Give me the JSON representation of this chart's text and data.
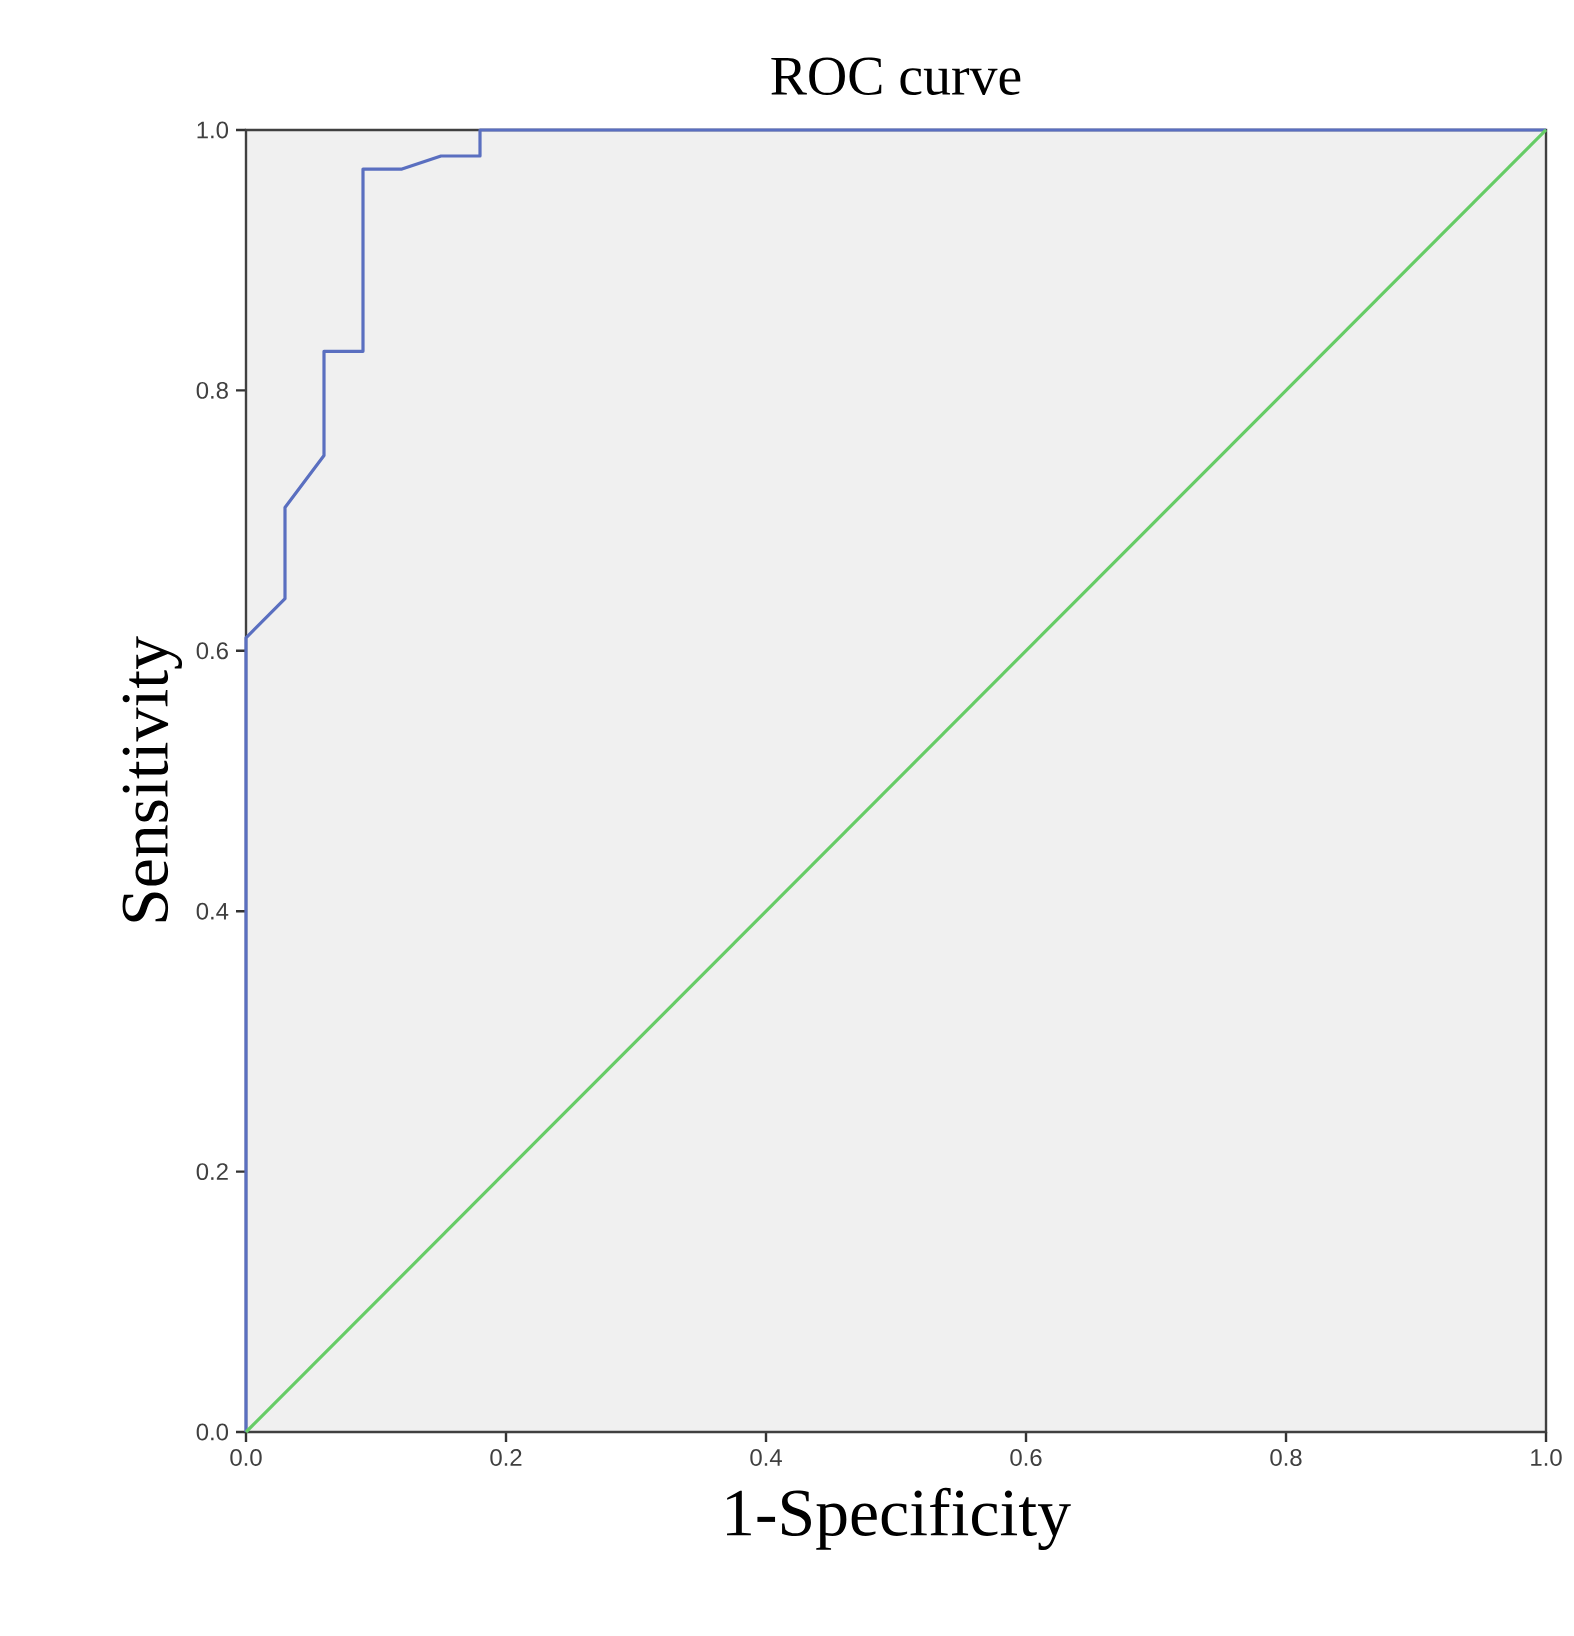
{
  "chart_data": {
    "type": "line",
    "title": "ROC curve",
    "xlabel": "1-Specificity",
    "ylabel": "Sensitivity",
    "series": [
      {
        "color": "#5a6fc0",
        "x": [
          0,
          0,
          0.03,
          0.03,
          0.06,
          0.06,
          0.09,
          0.09,
          0.12,
          0.15,
          0.18,
          0.18,
          1
        ],
        "values": [
          0,
          0.61,
          0.64,
          0.71,
          0.75,
          0.83,
          0.83,
          0.97,
          0.97,
          0.98,
          0.98,
          1,
          1
        ]
      },
      {
        "color": "#66cc66",
        "x": [
          0,
          1
        ],
        "values": [
          0,
          1
        ]
      }
    ],
    "xlim": [
      0,
      1
    ],
    "ylim": [
      0,
      1
    ],
    "xticks": [
      {
        "value": 0,
        "label": "0.0"
      },
      0.2,
      0.4,
      0.6,
      0.8,
      {
        "value": 1,
        "label": "1.0"
      }
    ],
    "yticks": [
      {
        "value": 0,
        "label": "0.0"
      },
      0.2,
      0.4,
      0.6,
      0.8,
      {
        "value": 1,
        "label": "1.0"
      }
    ],
    "grid": false,
    "marker": "none",
    "line_style": "solid"
  }
}
